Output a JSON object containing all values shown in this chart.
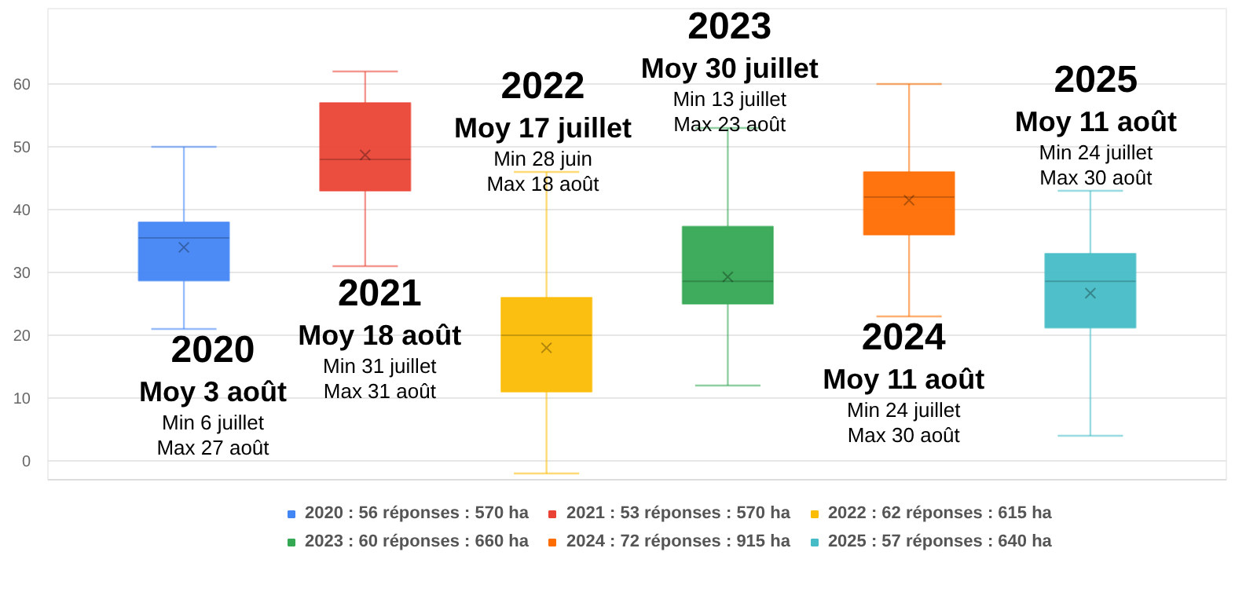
{
  "chart_data": {
    "type": "box",
    "categories": [
      null,
      null,
      null,
      null,
      null,
      null
    ],
    "ylim": [
      -3,
      72
    ],
    "yticks": [
      0,
      10,
      20,
      30,
      40,
      50,
      60
    ],
    "grid": "y",
    "tick_labels": "y",
    "legend": "bottom",
    "series": [
      {
        "name": "2020 : 56 réponses : 570 ha",
        "color": "#4285f4",
        "boxes": [
          {
            "low": 21,
            "q1": 28.7,
            "median": 35.5,
            "q3": 38,
            "high": 50,
            "mean": 34
          },
          null,
          null,
          null,
          null,
          null
        ]
      },
      {
        "name": "2021 : 53 réponses : 570 ha",
        "color": "#ea4335",
        "boxes": [
          null,
          {
            "low": 31,
            "q1": 43,
            "median": 48,
            "q3": 57,
            "high": 62,
            "mean": 48.7
          },
          null,
          null,
          null,
          null
        ]
      },
      {
        "name": "2022 : 62 réponses : 615 ha",
        "color": "#fbbc04",
        "boxes": [
          null,
          null,
          {
            "low": -2,
            "q1": 11,
            "median": 20,
            "q3": 26,
            "high": 46,
            "mean": 18
          },
          null,
          null,
          null
        ]
      },
      {
        "name": "2023 : 60 réponses : 660 ha",
        "color": "#34a853",
        "boxes": [
          null,
          null,
          null,
          {
            "low": 12,
            "q1": 25,
            "median": 28.6,
            "q3": 37.3,
            "high": 53,
            "mean": 29.3
          },
          null,
          null
        ]
      },
      {
        "name": "2024 : 72 réponses : 915 ha",
        "color": "#ff6d01",
        "boxes": [
          null,
          null,
          null,
          null,
          {
            "low": 23,
            "q1": 36,
            "median": 42,
            "q3": 46,
            "high": 60,
            "mean": 41.5
          },
          null
        ]
      },
      {
        "name": "2025 : 57 réponses : 640 ha",
        "color": "#46bdc6",
        "boxes": [
          null,
          null,
          null,
          null,
          null,
          {
            "low": 4,
            "q1": 21.2,
            "median": 28.6,
            "q3": 33,
            "high": 43,
            "mean": 26.7
          }
        ]
      }
    ],
    "annotations": [
      "2020\nMoy 3 août\nMin 6 juillet\nMax 27 août",
      "2021\nMoy 18 août\nMin 31 juillet\nMax 31 août",
      "2022\nMoy 17 juillet\nMin 28 juin\nMax 18 août",
      "2023\nMoy 30 juillet\nMin 13 juillet\nMax 23 août",
      "2024\nMoy 11 août\nMin 24 juillet\nMax 30 août",
      "2025\nMoy 11 août\nMin 24 juillet\nMax 30 août"
    ]
  }
}
